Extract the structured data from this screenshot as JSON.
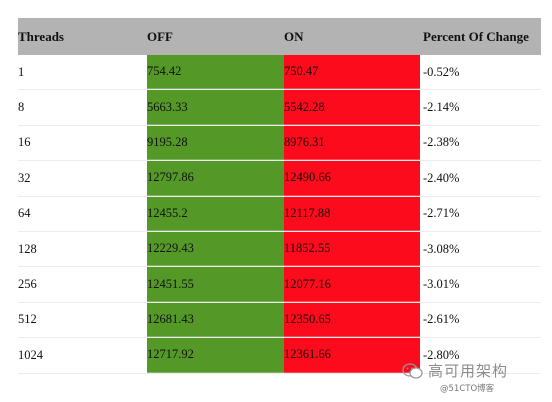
{
  "table": {
    "headers": [
      "Threads",
      "OFF",
      "ON",
      "Percent Of Change"
    ],
    "rows": [
      [
        "1",
        "754.42",
        "750.47",
        "-0.52%"
      ],
      [
        "8",
        "5663.33",
        "5542.28",
        "-2.14%"
      ],
      [
        "16",
        "9195.28",
        "8976.31",
        "-2.38%"
      ],
      [
        "32",
        "12797.86",
        "12490.66",
        "-2.40%"
      ],
      [
        "64",
        "12455.2",
        "12117.88",
        "-2.71%"
      ],
      [
        "128",
        "12229.43",
        "11852.55",
        "-3.08%"
      ],
      [
        "256",
        "12451.55",
        "12077.16",
        "-3.01%"
      ],
      [
        "512",
        "12681.43",
        "12350.65",
        "-2.61%"
      ],
      [
        "1024",
        "12717.92",
        "12361.66",
        "-2.80%"
      ]
    ]
  },
  "colors": {
    "header_bg": "#b3b3b3",
    "off_bg": "#549928",
    "on_bg": "#fb0b1b"
  },
  "watermark": {
    "title": "高可用架构",
    "subtitle": "@51CTO博客"
  }
}
